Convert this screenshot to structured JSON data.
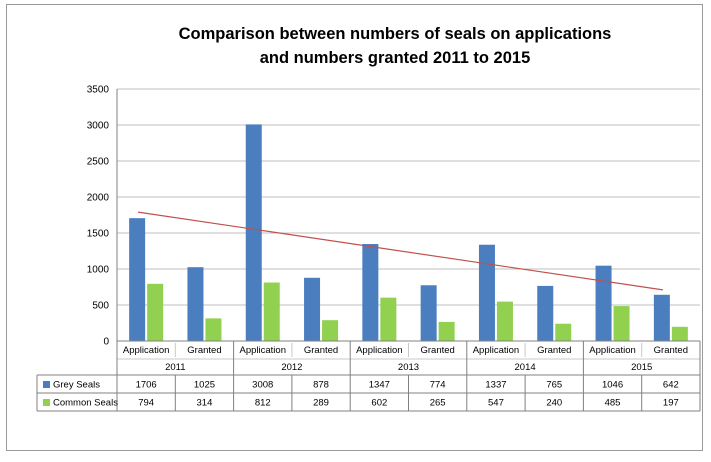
{
  "chart_data": {
    "type": "bar",
    "title_lines": [
      "Comparison between numbers of seals on applications",
      "and numbers granted 2011 to 2015"
    ],
    "years": [
      "2011",
      "2012",
      "2013",
      "2014",
      "2015"
    ],
    "categories": [
      "Application",
      "Granted",
      "Application",
      "Granted",
      "Application",
      "Granted",
      "Application",
      "Granted",
      "Application",
      "Granted"
    ],
    "series": [
      {
        "name": "Grey Seals",
        "color": "#4a7ebf",
        "values": [
          1706,
          1025,
          3008,
          878,
          1347,
          774,
          1337,
          765,
          1046,
          642
        ]
      },
      {
        "name": "Common Seals",
        "color": "#92d050",
        "values": [
          794,
          314,
          812,
          289,
          602,
          265,
          547,
          240,
          485,
          197
        ]
      }
    ],
    "trendline": {
      "color": "#c0504d",
      "series": "Grey Seals",
      "start_value": 1790,
      "end_value": 710
    },
    "yticks": [
      "0",
      "500",
      "1000",
      "1500",
      "2000",
      "2500",
      "3000",
      "3500"
    ],
    "ylim": [
      0,
      3500
    ],
    "grid": true,
    "legend": "data-table"
  }
}
